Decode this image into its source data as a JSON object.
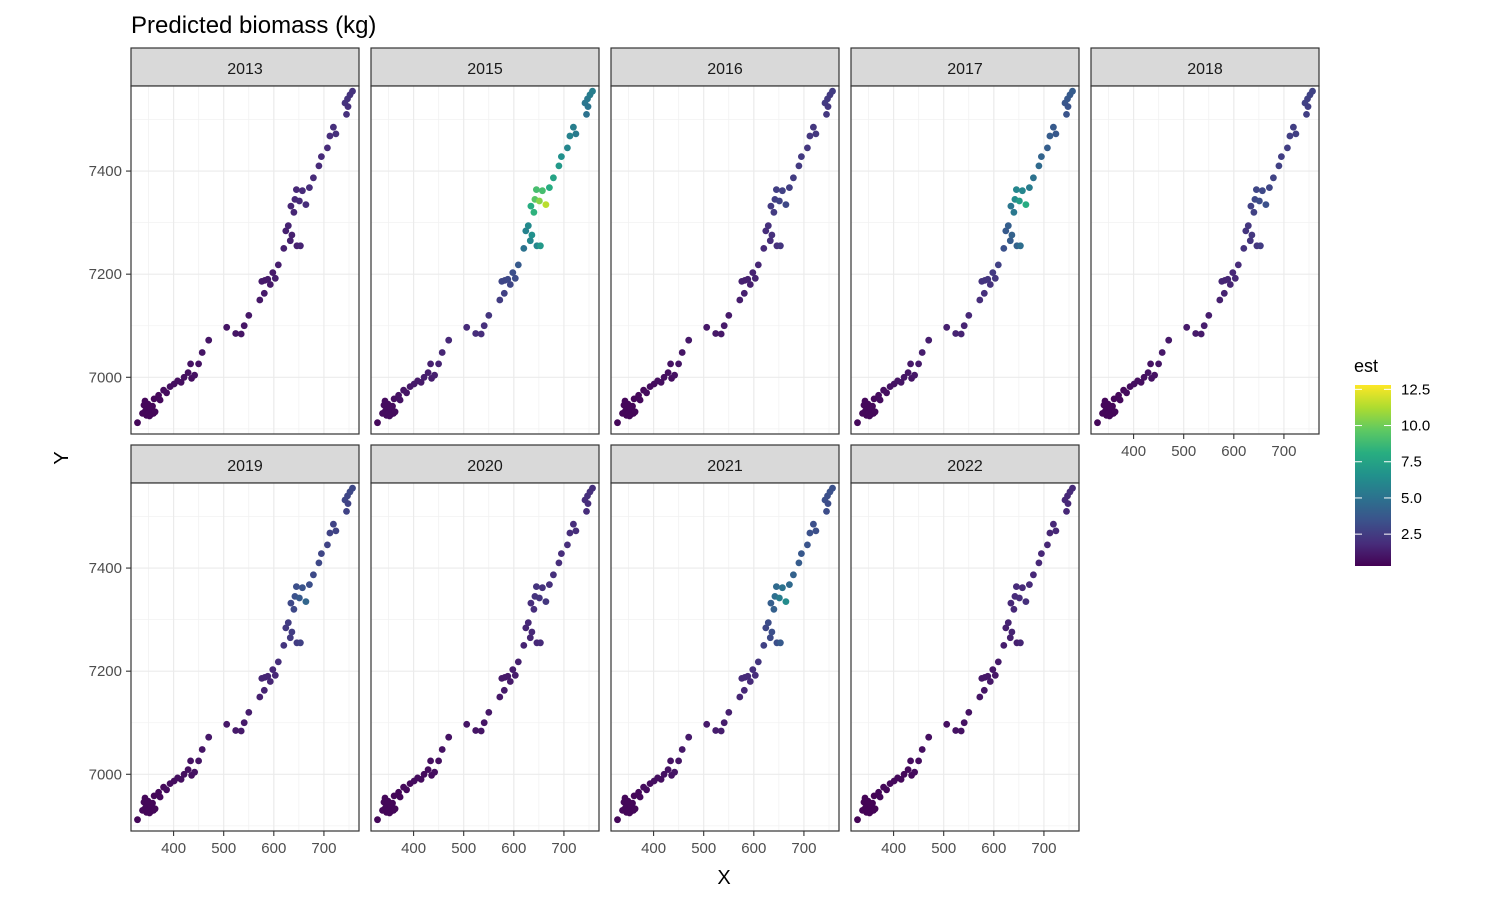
{
  "chart_data": {
    "type": "scatter",
    "title": "Predicted biomass (kg)",
    "xlabel": "X",
    "ylabel": "Y",
    "facet_variable": "year",
    "panels": [
      "2013",
      "2015",
      "2016",
      "2017",
      "2018",
      "2019",
      "2020",
      "2021",
      "2022"
    ],
    "xlim": [
      315,
      770
    ],
    "ylim": [
      6890,
      7565
    ],
    "x_ticks": [
      400,
      500,
      600,
      700
    ],
    "x_tick_labels": [
      "400",
      "500",
      "600",
      "700"
    ],
    "y_ticks": [
      7000,
      7200,
      7400
    ],
    "y_tick_labels": [
      "7000",
      "7200",
      "7400"
    ],
    "grid": true,
    "legend": {
      "title": "est",
      "position": "right",
      "colormap": "viridis",
      "range": [
        0.3,
        12.8
      ],
      "ticks": [
        2.5,
        5.0,
        7.5,
        10.0,
        12.5
      ],
      "tick_labels": [
        "2.5",
        "5.0",
        "7.5",
        "10.0",
        "12.5"
      ]
    },
    "locations": [
      [
        328,
        6912
      ],
      [
        338,
        6930
      ],
      [
        341,
        6946
      ],
      [
        343,
        6954
      ],
      [
        344,
        6935
      ],
      [
        346,
        6926
      ],
      [
        347,
        6940
      ],
      [
        349,
        6948
      ],
      [
        350,
        6931
      ],
      [
        352,
        6925
      ],
      [
        353,
        6942
      ],
      [
        355,
        6938
      ],
      [
        356,
        6929
      ],
      [
        358,
        6944
      ],
      [
        360,
        6930
      ],
      [
        361,
        6958
      ],
      [
        363,
        6933
      ],
      [
        370,
        6965
      ],
      [
        373,
        6956
      ],
      [
        380,
        6975
      ],
      [
        386,
        6970
      ],
      [
        393,
        6982
      ],
      [
        401,
        6987
      ],
      [
        408,
        6993
      ],
      [
        415,
        6990
      ],
      [
        421,
        7000
      ],
      [
        429,
        7009
      ],
      [
        434,
        7026
      ],
      [
        436,
        6998
      ],
      [
        442,
        7004
      ],
      [
        450,
        7026
      ],
      [
        457,
        7048
      ],
      [
        470,
        7072
      ],
      [
        506,
        7097
      ],
      [
        524,
        7085
      ],
      [
        535,
        7084
      ],
      [
        541,
        7100
      ],
      [
        550,
        7120
      ],
      [
        572,
        7150
      ],
      [
        576,
        7186
      ],
      [
        581,
        7163
      ],
      [
        582,
        7188
      ],
      [
        588,
        7190
      ],
      [
        593,
        7180
      ],
      [
        598,
        7203
      ],
      [
        603,
        7192
      ],
      [
        609,
        7218
      ],
      [
        620,
        7250
      ],
      [
        624,
        7284
      ],
      [
        629,
        7294
      ],
      [
        633,
        7265
      ],
      [
        636,
        7276
      ],
      [
        634,
        7332
      ],
      [
        640,
        7320
      ],
      [
        642,
        7345
      ],
      [
        645,
        7364
      ],
      [
        646,
        7255
      ],
      [
        651,
        7342
      ],
      [
        653,
        7255
      ],
      [
        657,
        7362
      ],
      [
        664,
        7335
      ],
      [
        671,
        7368
      ],
      [
        679,
        7387
      ],
      [
        690,
        7410
      ],
      [
        695,
        7428
      ],
      [
        707,
        7445
      ],
      [
        712,
        7468
      ],
      [
        719,
        7485
      ],
      [
        724,
        7472
      ],
      [
        742,
        7532
      ],
      [
        745,
        7510
      ],
      [
        747,
        7540
      ],
      [
        752,
        7548
      ],
      [
        757,
        7555
      ],
      [
        748,
        7525
      ]
    ],
    "series": [
      {
        "name": "2013",
        "values": [
          0.5,
          0.5,
          0.5,
          0.5,
          0.5,
          0.5,
          0.5,
          0.5,
          0.5,
          0.5,
          0.5,
          0.5,
          0.5,
          0.5,
          0.5,
          0.5,
          0.5,
          0.6,
          0.6,
          0.7,
          0.7,
          0.8,
          0.8,
          0.8,
          0.8,
          0.8,
          0.8,
          0.9,
          0.8,
          0.9,
          0.9,
          1.0,
          1.0,
          1.0,
          1.0,
          1.0,
          1.0,
          1.1,
          1.1,
          1.2,
          1.2,
          1.2,
          1.2,
          1.2,
          1.2,
          1.3,
          1.3,
          1.4,
          1.4,
          1.5,
          1.4,
          1.4,
          1.6,
          1.6,
          1.7,
          1.7,
          1.4,
          1.8,
          1.5,
          1.8,
          1.9,
          1.9,
          1.8,
          1.8,
          1.8,
          1.8,
          1.9,
          2.0,
          2.0,
          2.1,
          2.0,
          2.1,
          2.1,
          2.1,
          2.0
        ]
      },
      {
        "name": "2015",
        "values": [
          0.6,
          0.7,
          0.7,
          0.7,
          0.7,
          0.7,
          0.7,
          0.7,
          0.7,
          0.7,
          0.7,
          0.7,
          0.7,
          0.7,
          0.7,
          0.8,
          0.7,
          0.9,
          0.9,
          1.0,
          1.0,
          1.1,
          1.2,
          1.2,
          1.2,
          1.3,
          1.3,
          1.4,
          1.3,
          1.4,
          1.5,
          1.6,
          1.7,
          1.8,
          1.9,
          1.9,
          2.0,
          2.2,
          2.5,
          2.9,
          2.7,
          2.9,
          3.0,
          2.9,
          3.3,
          3.2,
          3.8,
          5.0,
          5.8,
          6.2,
          6.0,
          6.5,
          8.0,
          8.3,
          9.5,
          9.0,
          6.0,
          10.5,
          7.0,
          9.0,
          11.5,
          8.0,
          7.5,
          7.0,
          6.5,
          6.0,
          5.8,
          5.6,
          5.4,
          5.2,
          5.0,
          5.3,
          5.5,
          5.6,
          5.1
        ]
      },
      {
        "name": "2016",
        "values": [
          0.5,
          0.5,
          0.5,
          0.5,
          0.5,
          0.5,
          0.5,
          0.5,
          0.5,
          0.5,
          0.5,
          0.5,
          0.5,
          0.5,
          0.5,
          0.5,
          0.5,
          0.6,
          0.6,
          0.6,
          0.7,
          0.7,
          0.7,
          0.8,
          0.8,
          0.8,
          0.8,
          0.9,
          0.8,
          0.9,
          1.0,
          1.0,
          1.1,
          1.1,
          1.1,
          1.1,
          1.2,
          1.2,
          1.3,
          1.4,
          1.4,
          1.4,
          1.4,
          1.4,
          1.5,
          1.5,
          1.6,
          1.8,
          1.9,
          2.0,
          1.9,
          2.0,
          2.4,
          2.4,
          2.6,
          2.6,
          2.0,
          2.8,
          2.2,
          2.7,
          3.0,
          2.6,
          2.5,
          2.4,
          2.4,
          2.3,
          2.3,
          2.3,
          2.3,
          2.4,
          2.3,
          2.4,
          2.4,
          2.5,
          2.3
        ]
      },
      {
        "name": "2017",
        "values": [
          0.6,
          0.6,
          0.6,
          0.6,
          0.6,
          0.6,
          0.6,
          0.6,
          0.6,
          0.6,
          0.6,
          0.6,
          0.6,
          0.6,
          0.6,
          0.6,
          0.6,
          0.7,
          0.7,
          0.8,
          0.8,
          0.9,
          0.9,
          1.0,
          1.0,
          1.0,
          1.0,
          1.1,
          1.0,
          1.1,
          1.2,
          1.3,
          1.3,
          1.4,
          1.5,
          1.5,
          1.5,
          1.7,
          1.9,
          2.1,
          2.0,
          2.2,
          2.2,
          2.1,
          2.4,
          2.3,
          2.7,
          3.4,
          3.8,
          4.0,
          3.9,
          4.2,
          5.2,
          5.3,
          6.3,
          6.0,
          4.2,
          7.2,
          4.8,
          6.0,
          8.0,
          5.5,
          5.0,
          4.6,
          4.3,
          4.0,
          3.9,
          3.8,
          3.7,
          3.6,
          3.5,
          3.7,
          3.8,
          3.9,
          3.5
        ]
      },
      {
        "name": "2018",
        "values": [
          0.5,
          0.5,
          0.5,
          0.5,
          0.5,
          0.5,
          0.5,
          0.5,
          0.5,
          0.5,
          0.5,
          0.5,
          0.5,
          0.5,
          0.5,
          0.5,
          0.5,
          0.6,
          0.6,
          0.6,
          0.7,
          0.7,
          0.8,
          0.8,
          0.8,
          0.8,
          0.9,
          0.9,
          0.9,
          0.9,
          1.0,
          1.1,
          1.1,
          1.2,
          1.2,
          1.2,
          1.3,
          1.3,
          1.4,
          1.6,
          1.5,
          1.6,
          1.6,
          1.6,
          1.7,
          1.7,
          1.8,
          2.1,
          2.2,
          2.3,
          2.2,
          2.3,
          2.7,
          2.7,
          3.0,
          2.9,
          2.3,
          3.2,
          2.5,
          3.0,
          3.4,
          2.9,
          2.8,
          2.7,
          2.6,
          2.6,
          2.6,
          2.6,
          2.6,
          2.7,
          2.6,
          2.7,
          2.8,
          2.8,
          2.6
        ]
      },
      {
        "name": "2019",
        "values": [
          0.5,
          0.5,
          0.5,
          0.5,
          0.5,
          0.5,
          0.5,
          0.5,
          0.5,
          0.5,
          0.5,
          0.5,
          0.5,
          0.5,
          0.5,
          0.5,
          0.5,
          0.6,
          0.6,
          0.6,
          0.7,
          0.7,
          0.7,
          0.8,
          0.8,
          0.8,
          0.8,
          0.9,
          0.8,
          0.9,
          1.0,
          1.0,
          1.1,
          1.1,
          1.2,
          1.2,
          1.2,
          1.3,
          1.4,
          1.6,
          1.5,
          1.6,
          1.6,
          1.6,
          1.7,
          1.7,
          1.9,
          2.2,
          2.4,
          2.5,
          2.4,
          2.5,
          3.0,
          3.0,
          3.4,
          3.3,
          2.5,
          3.8,
          2.7,
          3.5,
          4.4,
          3.3,
          3.1,
          3.0,
          2.9,
          2.8,
          2.8,
          2.8,
          2.8,
          2.9,
          2.8,
          2.9,
          3.0,
          3.0,
          2.8
        ]
      },
      {
        "name": "2020",
        "values": [
          0.5,
          0.5,
          0.5,
          0.5,
          0.5,
          0.5,
          0.5,
          0.5,
          0.5,
          0.5,
          0.5,
          0.5,
          0.5,
          0.5,
          0.5,
          0.5,
          0.5,
          0.5,
          0.5,
          0.6,
          0.6,
          0.6,
          0.7,
          0.7,
          0.7,
          0.7,
          0.7,
          0.8,
          0.7,
          0.8,
          0.8,
          0.9,
          0.9,
          1.0,
          1.0,
          1.0,
          1.0,
          1.1,
          1.1,
          1.2,
          1.2,
          1.2,
          1.2,
          1.2,
          1.3,
          1.3,
          1.4,
          1.5,
          1.6,
          1.7,
          1.6,
          1.7,
          1.9,
          1.9,
          2.1,
          2.1,
          1.7,
          2.2,
          1.8,
          2.1,
          2.3,
          2.0,
          2.0,
          1.9,
          1.9,
          1.9,
          1.9,
          1.9,
          1.9,
          1.9,
          1.9,
          2.0,
          2.0,
          2.0,
          1.9
        ]
      },
      {
        "name": "2021",
        "values": [
          0.5,
          0.5,
          0.5,
          0.5,
          0.5,
          0.5,
          0.5,
          0.5,
          0.5,
          0.5,
          0.5,
          0.5,
          0.5,
          0.5,
          0.5,
          0.5,
          0.5,
          0.6,
          0.6,
          0.7,
          0.7,
          0.7,
          0.8,
          0.8,
          0.8,
          0.9,
          0.9,
          0.9,
          0.9,
          1.0,
          1.0,
          1.1,
          1.2,
          1.2,
          1.3,
          1.3,
          1.3,
          1.4,
          1.6,
          1.8,
          1.7,
          1.8,
          1.8,
          1.8,
          2.0,
          1.9,
          2.2,
          2.7,
          3.0,
          3.2,
          3.1,
          3.3,
          4.0,
          4.1,
          4.8,
          4.6,
          3.3,
          5.5,
          3.8,
          5.0,
          6.3,
          4.6,
          4.2,
          3.9,
          3.7,
          3.5,
          3.4,
          3.3,
          3.3,
          3.3,
          3.2,
          3.3,
          3.4,
          3.4,
          3.2
        ]
      },
      {
        "name": "2022",
        "values": [
          0.4,
          0.4,
          0.4,
          0.4,
          0.4,
          0.4,
          0.4,
          0.4,
          0.4,
          0.4,
          0.4,
          0.4,
          0.4,
          0.4,
          0.4,
          0.4,
          0.4,
          0.5,
          0.5,
          0.5,
          0.5,
          0.6,
          0.6,
          0.6,
          0.6,
          0.6,
          0.6,
          0.7,
          0.6,
          0.7,
          0.7,
          0.8,
          0.8,
          0.8,
          0.9,
          0.9,
          0.9,
          0.9,
          1.0,
          1.1,
          1.0,
          1.1,
          1.1,
          1.1,
          1.1,
          1.1,
          1.2,
          1.3,
          1.4,
          1.5,
          1.4,
          1.5,
          1.7,
          1.7,
          1.8,
          1.8,
          1.4,
          1.9,
          1.6,
          1.8,
          2.0,
          1.8,
          1.7,
          1.7,
          1.7,
          1.6,
          1.6,
          1.7,
          1.7,
          1.7,
          1.7,
          1.7,
          1.8,
          1.8,
          1.7
        ]
      }
    ]
  }
}
